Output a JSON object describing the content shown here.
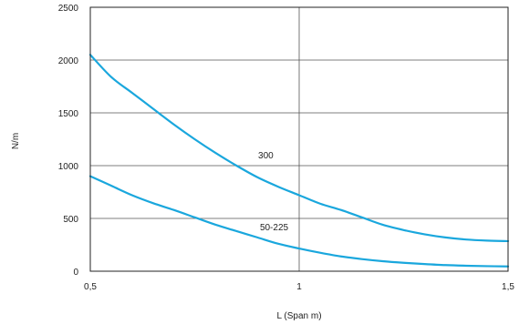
{
  "chart_data": {
    "type": "line",
    "xlabel": "L (Span m)",
    "ylabel": "N/m",
    "xlim": [
      0.5,
      1.5
    ],
    "ylim": [
      0,
      2500
    ],
    "x_ticks": [
      0.5,
      1,
      1.5
    ],
    "x_tick_labels": [
      "0,5",
      "1",
      "1,5"
    ],
    "y_ticks": [
      0,
      500,
      1000,
      1500,
      2000,
      2500
    ],
    "y_tick_labels": [
      "0",
      "500",
      "1000",
      "1500",
      "2000",
      "2500"
    ],
    "grid": true,
    "series": [
      {
        "name": "300",
        "color": "#1aa7dd",
        "x": [
          0.5,
          0.55,
          0.6,
          0.65,
          0.7,
          0.75,
          0.8,
          0.85,
          0.9,
          0.95,
          1.0,
          1.05,
          1.1,
          1.15,
          1.2,
          1.25,
          1.3,
          1.35,
          1.4,
          1.45,
          1.5
        ],
        "y": [
          2050,
          1840,
          1690,
          1540,
          1390,
          1250,
          1120,
          1000,
          890,
          800,
          720,
          640,
          580,
          510,
          440,
          390,
          350,
          320,
          300,
          290,
          285
        ]
      },
      {
        "name": "50-225",
        "color": "#1aa7dd",
        "x": [
          0.5,
          0.55,
          0.6,
          0.65,
          0.7,
          0.75,
          0.8,
          0.85,
          0.9,
          0.95,
          1.0,
          1.05,
          1.1,
          1.15,
          1.2,
          1.25,
          1.3,
          1.35,
          1.4,
          1.45,
          1.5
        ],
        "y": [
          900,
          810,
          720,
          645,
          580,
          510,
          440,
          380,
          320,
          260,
          215,
          175,
          140,
          115,
          95,
          80,
          68,
          58,
          52,
          48,
          45
        ]
      }
    ],
    "annotations": [
      {
        "text": "300",
        "x": 0.92,
        "y": 1070
      },
      {
        "text": "50-225",
        "x": 0.94,
        "y": 390
      }
    ]
  }
}
